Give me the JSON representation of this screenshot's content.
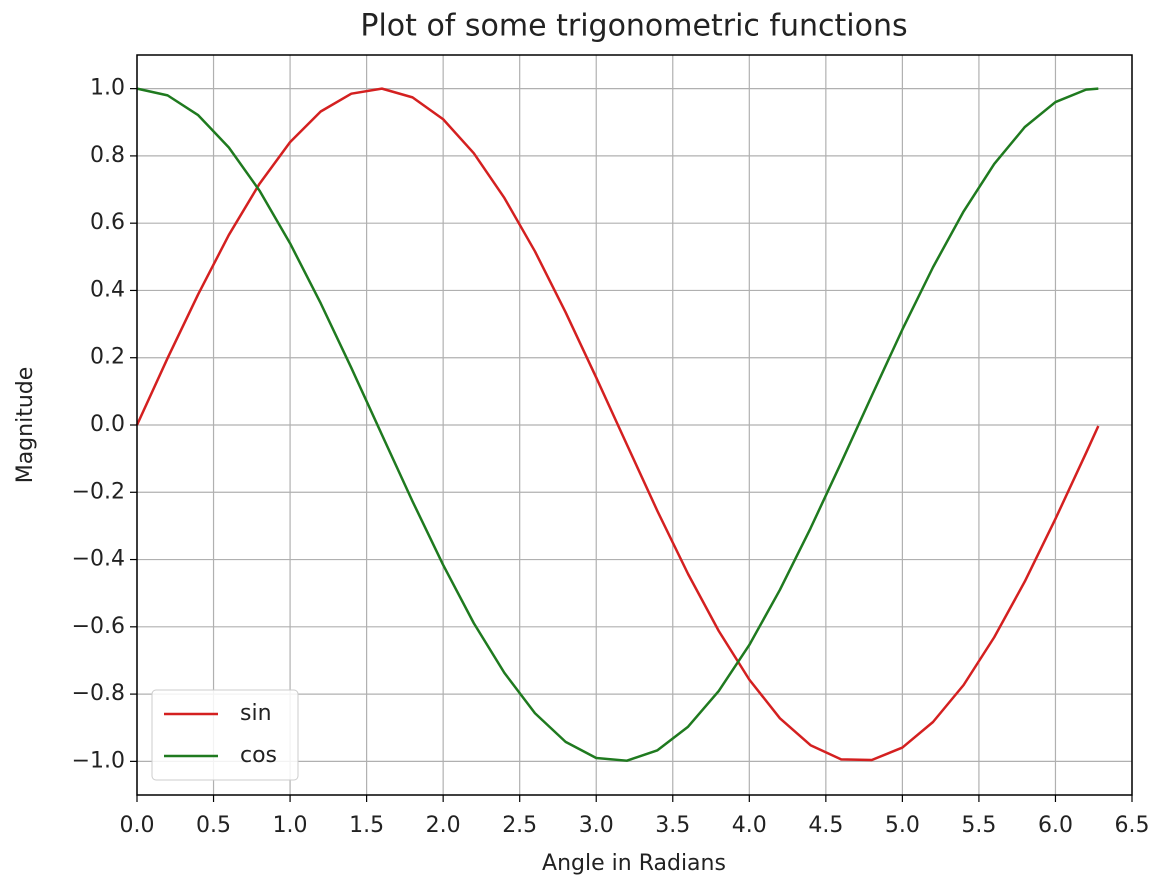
{
  "chart_data": {
    "type": "line",
    "title": "Plot of some trigonometric functions",
    "x_label": "Angle in Radians",
    "y_label": "Magnitude",
    "x": [
      0,
      0.2,
      0.4,
      0.6,
      0.8,
      1.0,
      1.2,
      1.4,
      1.6,
      1.8,
      2.0,
      2.2,
      2.4,
      2.6,
      2.8,
      3.0,
      3.2,
      3.4,
      3.6,
      3.8,
      4.0,
      4.2,
      4.4,
      4.6,
      4.8,
      5.0,
      5.2,
      5.4,
      5.6,
      5.8,
      6.0,
      6.2,
      6.28
    ],
    "series": [
      {
        "name": "sin",
        "color": "#d42020",
        "values": [
          0,
          0.199,
          0.389,
          0.565,
          0.717,
          0.841,
          0.932,
          0.985,
          1.0,
          0.974,
          0.909,
          0.808,
          0.675,
          0.516,
          0.335,
          0.141,
          -0.058,
          -0.256,
          -0.443,
          -0.612,
          -0.757,
          -0.872,
          -0.952,
          -0.994,
          -0.996,
          -0.959,
          -0.883,
          -0.773,
          -0.631,
          -0.465,
          -0.279,
          -0.083,
          -0.003
        ]
      },
      {
        "name": "cos",
        "color": "#1f7a1f",
        "values": [
          1.0,
          0.98,
          0.921,
          0.825,
          0.697,
          0.54,
          0.362,
          0.17,
          -0.029,
          -0.227,
          -0.416,
          -0.589,
          -0.737,
          -0.857,
          -0.942,
          -0.99,
          -0.998,
          -0.967,
          -0.897,
          -0.791,
          -0.654,
          -0.49,
          -0.307,
          -0.112,
          0.087,
          0.284,
          0.469,
          0.635,
          0.776,
          0.886,
          0.96,
          0.997,
          1.0
        ]
      }
    ],
    "xlim": [
      0,
      6.5
    ],
    "xticks": [
      {
        "value": 0,
        "label": "0.0"
      },
      {
        "value": 0.5,
        "label": "0.5"
      },
      {
        "value": 1,
        "label": "1.0"
      },
      {
        "value": 1.5,
        "label": "1.5"
      },
      {
        "value": 2,
        "label": "2.0"
      },
      {
        "value": 2.5,
        "label": "2.5"
      },
      {
        "value": 3,
        "label": "3.0"
      },
      {
        "value": 3.5,
        "label": "3.5"
      },
      {
        "value": 4,
        "label": "4.0"
      },
      {
        "value": 4.5,
        "label": "4.5"
      },
      {
        "value": 5,
        "label": "5.0"
      },
      {
        "value": 5.5,
        "label": "5.5"
      },
      {
        "value": 6,
        "label": "6.0"
      },
      {
        "value": 6.5,
        "label": "6.5"
      }
    ],
    "ylim": [
      -1.1,
      1.1
    ],
    "yticks": [
      {
        "value": -1,
        "label": "−1.0"
      },
      {
        "value": -0.8,
        "label": "−0.8"
      },
      {
        "value": -0.6,
        "label": "−0.6"
      },
      {
        "value": -0.4,
        "label": "−0.4"
      },
      {
        "value": -0.2,
        "label": "−0.2"
      },
      {
        "value": 0,
        "label": "0.0"
      },
      {
        "value": 0.2,
        "label": "0.2"
      },
      {
        "value": 0.4,
        "label": "0.4"
      },
      {
        "value": 0.6,
        "label": "0.6"
      },
      {
        "value": 0.8,
        "label": "0.8"
      },
      {
        "value": 1,
        "label": "1.0"
      }
    ],
    "grid": true,
    "legend": "lower left"
  }
}
